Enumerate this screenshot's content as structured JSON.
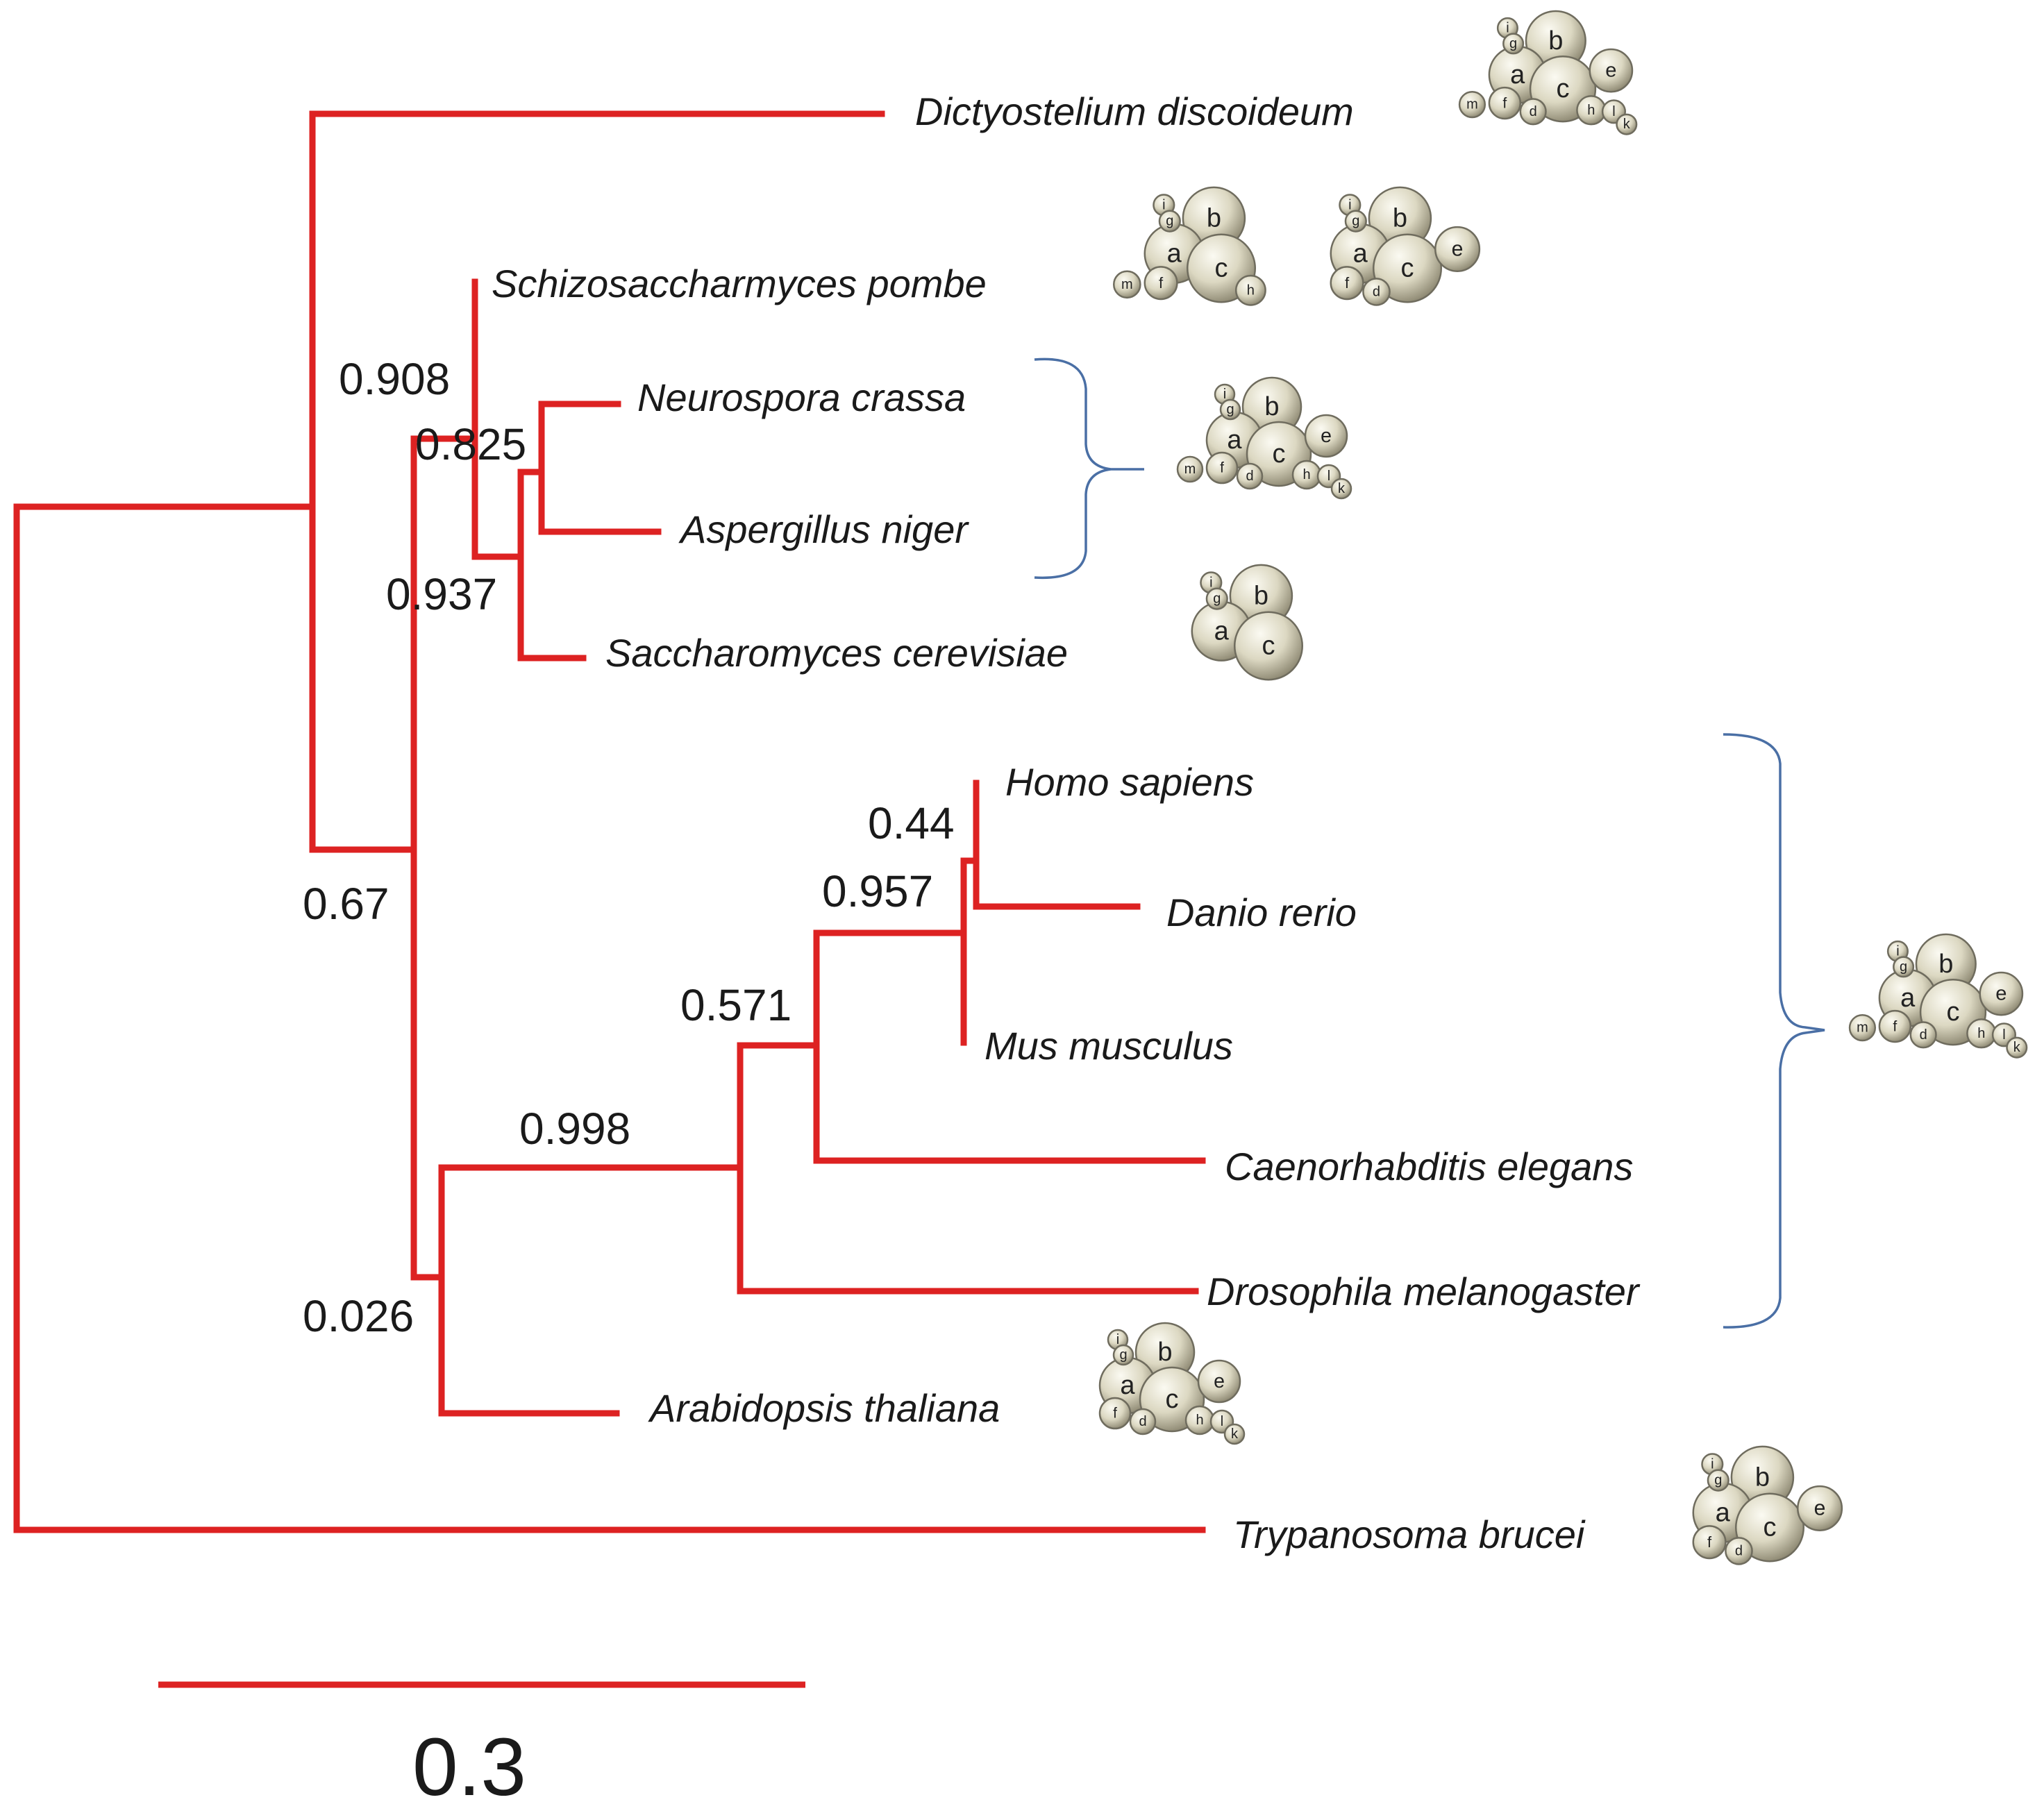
{
  "colors": {
    "branch": "#dd2222",
    "bracket": "#4a6fa5",
    "bubble_fill": "#dcd8c2",
    "bubble_highlight": "#f7f5ea",
    "bubble_shadow": "#8a8672"
  },
  "taxa": [
    {
      "id": "dictyostelium",
      "name": "Dictyostelium discoideum"
    },
    {
      "id": "pombe",
      "name": "Schizosaccharmyces pombe"
    },
    {
      "id": "neurospora",
      "name": "Neurospora crassa"
    },
    {
      "id": "aspergillus",
      "name": "Aspergillus niger"
    },
    {
      "id": "saccharomyces",
      "name": "Saccharomyces cerevisiae"
    },
    {
      "id": "homo",
      "name": "Homo sapiens"
    },
    {
      "id": "danio",
      "name": "Danio rerio"
    },
    {
      "id": "mus",
      "name": "Mus musculus"
    },
    {
      "id": "caenorhabditis",
      "name": "Caenorhabditis elegans"
    },
    {
      "id": "drosophila",
      "name": "Drosophila melanogaster"
    },
    {
      "id": "arabidopsis",
      "name": "Arabidopsis thaliana"
    },
    {
      "id": "trypanosoma",
      "name": "Trypanosoma brucei"
    }
  ],
  "support_values": [
    {
      "id": "node-fungi",
      "value": "0.908"
    },
    {
      "id": "node-neurospora-aspergillus",
      "value": "0.825"
    },
    {
      "id": "node-yeast-pezizo",
      "value": "0.937"
    },
    {
      "id": "node-opisthokonta-plant",
      "value": "0.67"
    },
    {
      "id": "node-homo-danio",
      "value": "0.44"
    },
    {
      "id": "node-vertebrates",
      "value": "0.957"
    },
    {
      "id": "node-bilateria",
      "value": "0.571"
    },
    {
      "id": "node-animals",
      "value": "0.998"
    },
    {
      "id": "node-animal-plant",
      "value": "0.026"
    }
  ],
  "scale_bar": {
    "label": "0.3",
    "length": 0.3
  },
  "complex_diagrams": [
    {
      "id": "dictyostelium",
      "subunits": "a b c d e f g h i k l m"
    },
    {
      "id": "pombe",
      "subunits": "a b c f g h i m"
    },
    {
      "id": "pombe-alt",
      "subunits": "a b c d e f g i"
    },
    {
      "id": "neurospora-aspergillus",
      "subunits": "a b c d e f g h i k l m"
    },
    {
      "id": "saccharomyces",
      "subunits": "a b c g i"
    },
    {
      "id": "animals",
      "subunits": "a b c d e f g h i k l m"
    },
    {
      "id": "arabidopsis",
      "subunits": "a b c d e f g h i k l"
    },
    {
      "id": "trypanosoma",
      "subunits": "a b c d e f g i"
    }
  ]
}
